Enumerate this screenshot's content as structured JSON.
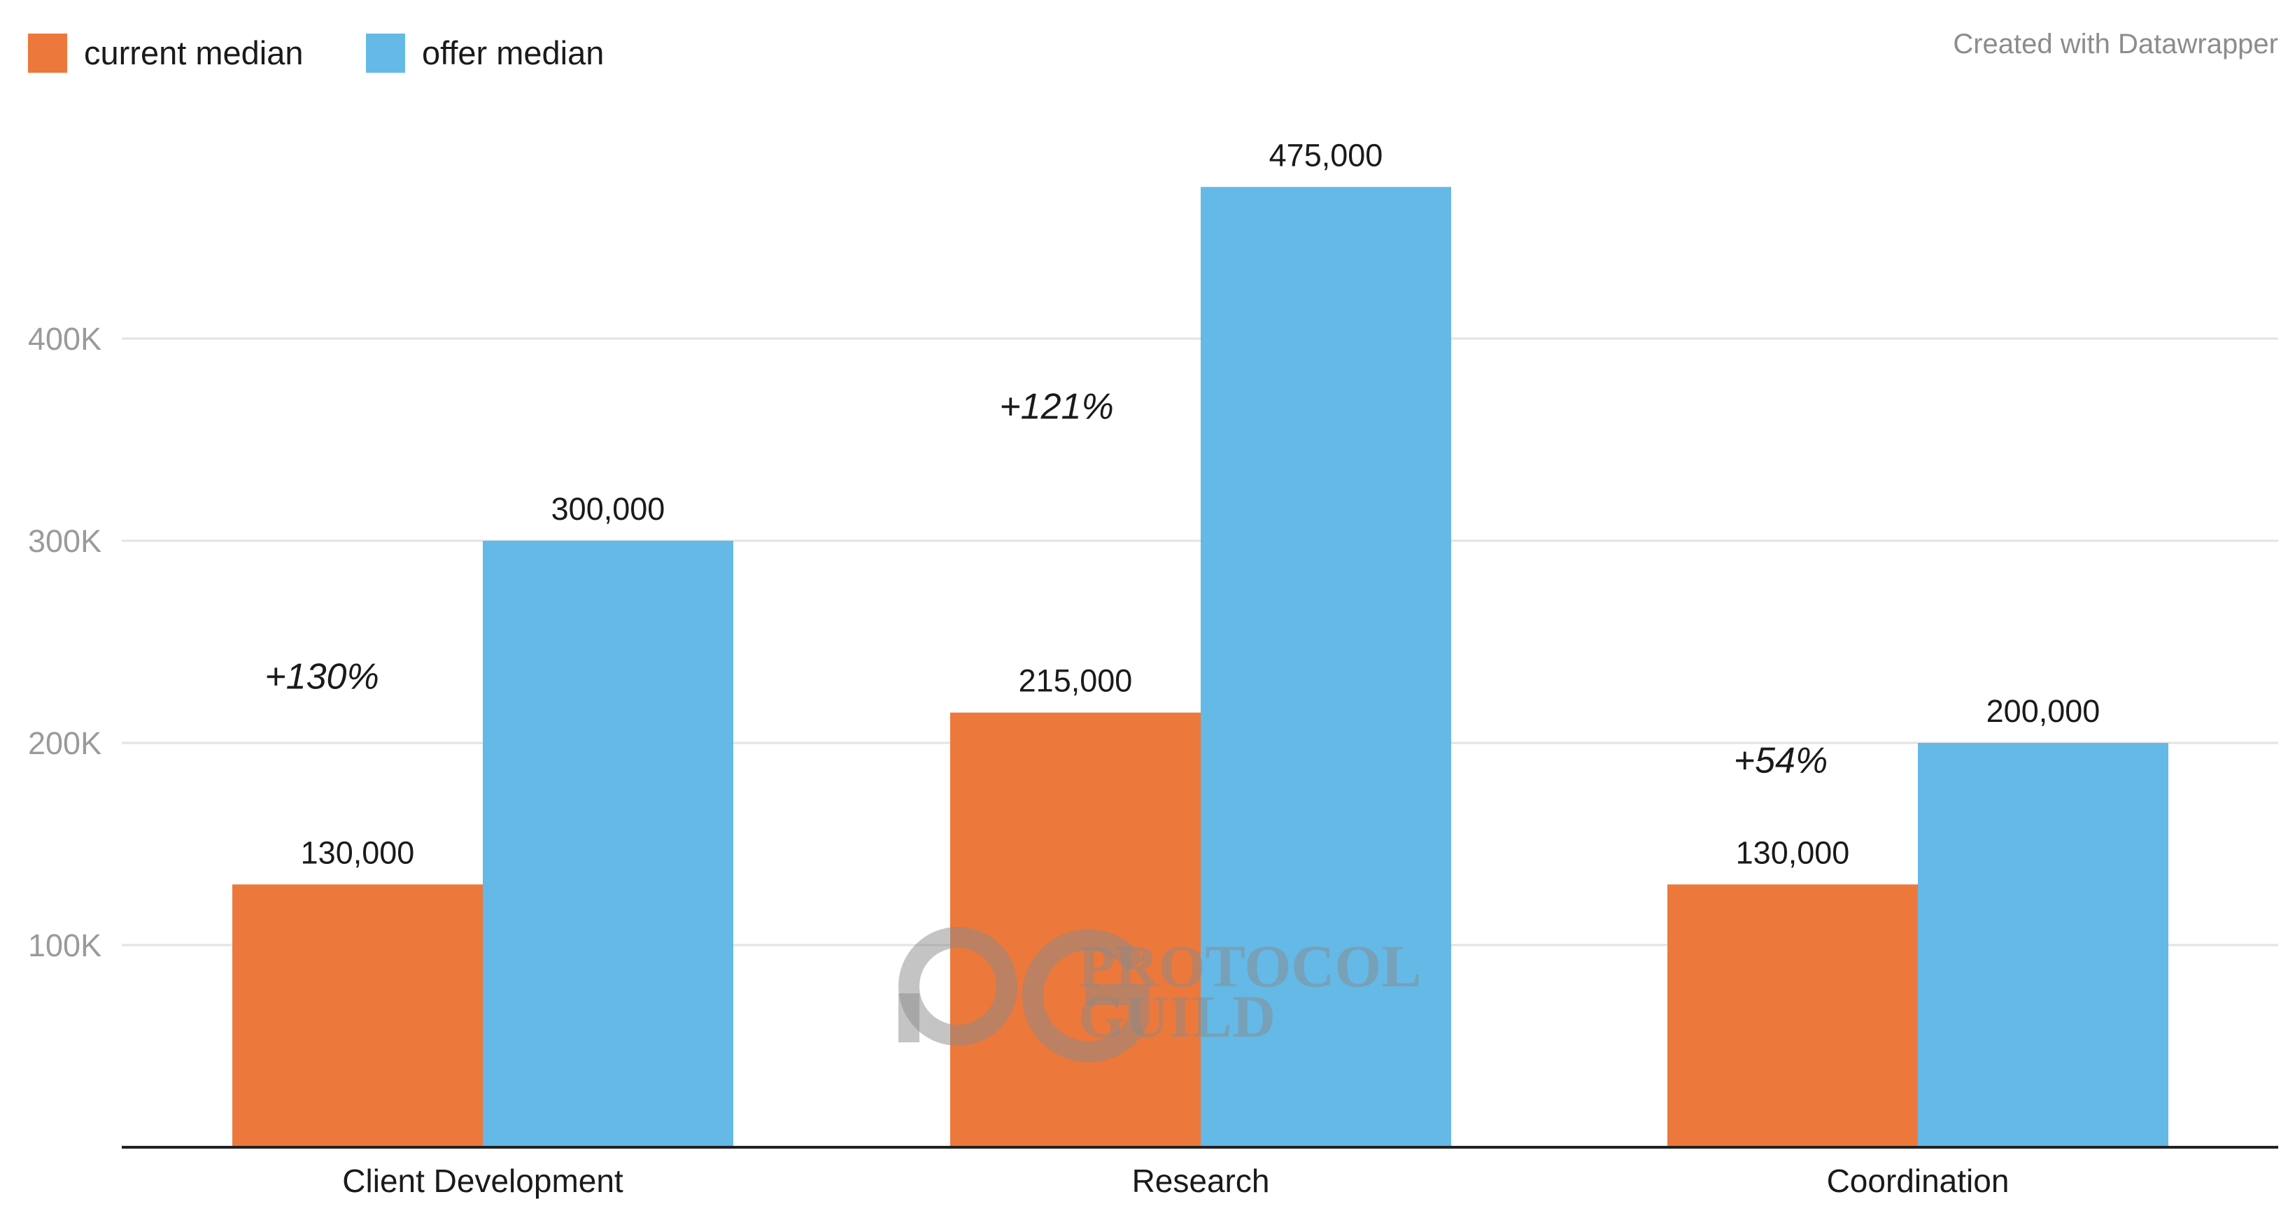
{
  "credit": "Created with Datawrapper",
  "colors": {
    "current": "#ed783b",
    "offer": "#64b9e7",
    "grid": "#e3e3e3",
    "axis": "#222222"
  },
  "legend": [
    {
      "label": "current median",
      "color": "#ed783b"
    },
    {
      "label": "offer median",
      "color": "#64b9e7"
    }
  ],
  "watermark": {
    "line1": "PROTOCOL",
    "line2": "GUILD",
    "icon": "protocol-guild-logo-icon"
  },
  "chart_data": {
    "type": "bar",
    "categories": [
      "Client Development",
      "Research",
      "Coordination"
    ],
    "series": [
      {
        "name": "current median",
        "values": [
          130000,
          215000,
          130000
        ]
      },
      {
        "name": "offer median",
        "values": [
          300000,
          475000,
          200000
        ]
      }
    ],
    "value_labels": [
      [
        "130,000",
        "215,000",
        "130,000"
      ],
      [
        "300,000",
        "475,000",
        "200,000"
      ]
    ],
    "annotations": [
      "+130%",
      "+121%",
      "+54%"
    ],
    "y_ticks": [
      100000,
      200000,
      300000,
      400000
    ],
    "y_tick_labels": [
      "100K",
      "200K",
      "300K",
      "400K"
    ],
    "ylim": [
      0,
      500000
    ],
    "grid": true,
    "legend_position": "top-left",
    "xlabel": "",
    "ylabel": ""
  }
}
